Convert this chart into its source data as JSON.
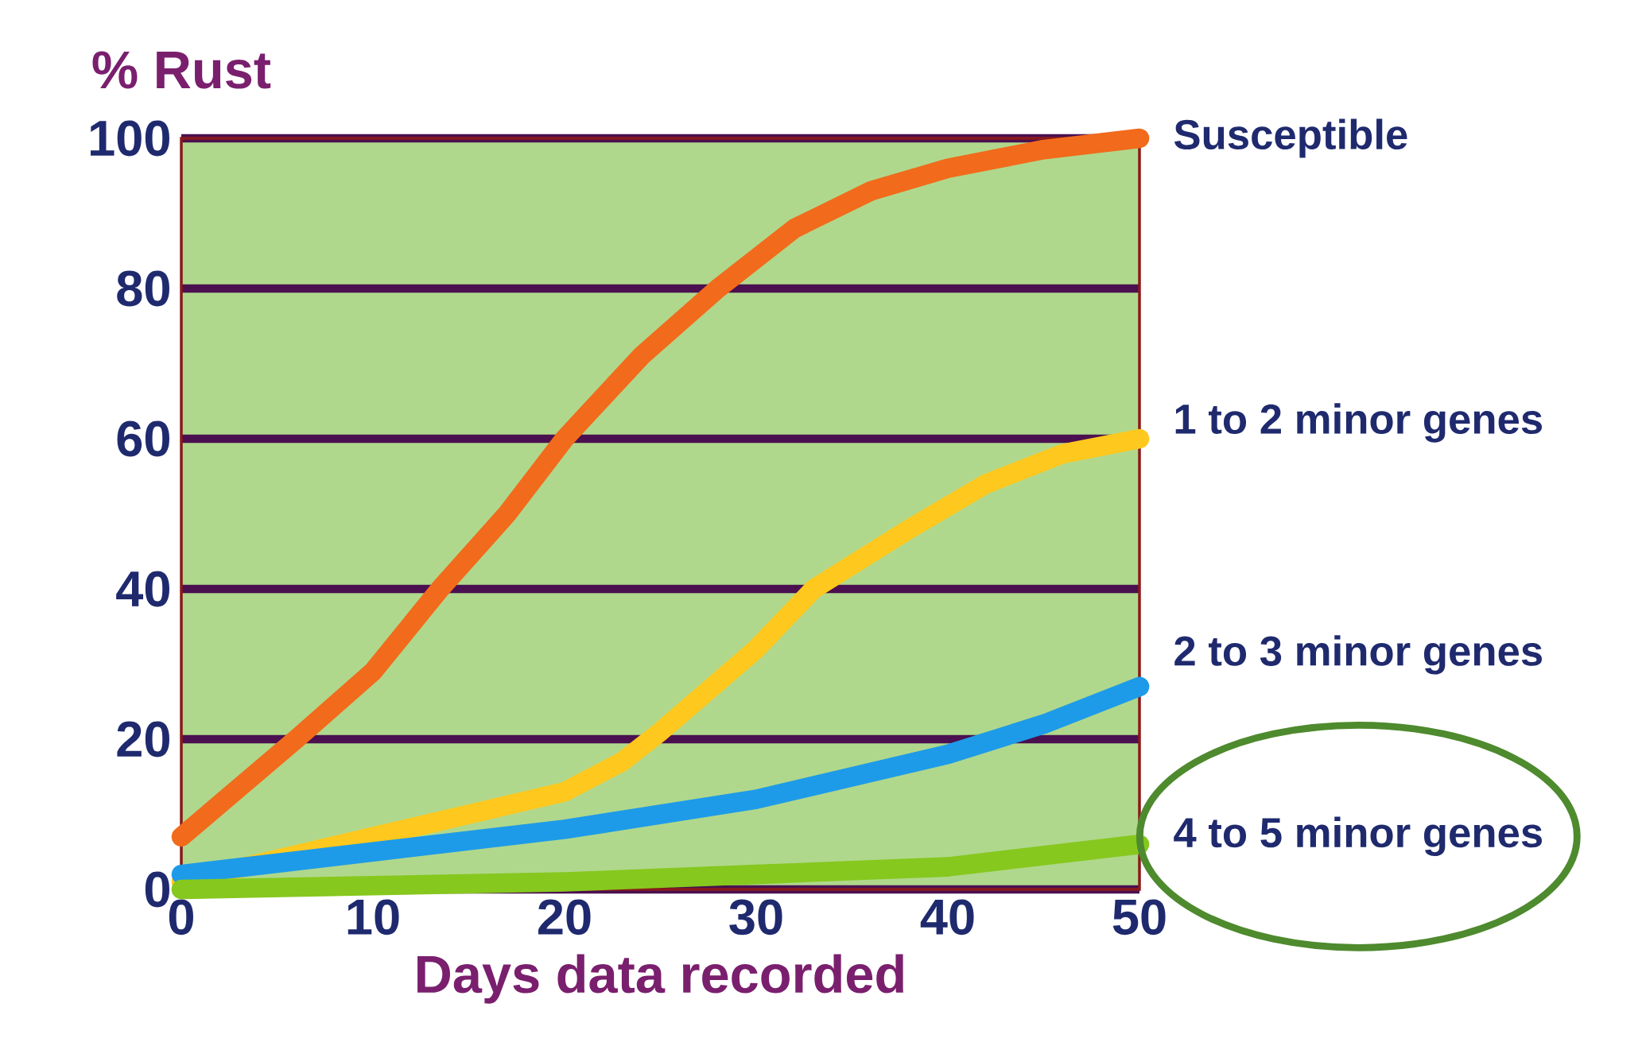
{
  "chart_data": {
    "type": "line",
    "ylabel": "% Rust",
    "xlabel": "Days data recorded",
    "xlim": [
      0,
      50
    ],
    "xticks": [
      0,
      10,
      20,
      30,
      40,
      50
    ],
    "ylim": [
      0,
      100
    ],
    "yticks": [
      0,
      20,
      40,
      60,
      80,
      100
    ],
    "grid": "y",
    "legend": false,
    "marker": "none",
    "line_style": "solid",
    "series": [
      {
        "name": "Susceptible",
        "color": "#f26a1b",
        "x": [
          0,
          6,
          10,
          13.5,
          17,
          20,
          24,
          28,
          32,
          36,
          40,
          45,
          50
        ],
        "values": [
          7,
          20,
          29,
          40,
          50,
          60,
          71,
          80,
          88,
          93,
          96,
          98.5,
          100
        ]
      },
      {
        "name": "1 to 2 minor genes",
        "color": "#ffc81e",
        "x": [
          0,
          10,
          20,
          23,
          25,
          30,
          33,
          38,
          42,
          46,
          50
        ],
        "values": [
          1,
          7,
          13,
          17,
          21,
          32,
          40,
          48,
          54,
          58,
          60
        ]
      },
      {
        "name": "2 to 3 minor genes",
        "color": "#1e9be8",
        "x": [
          0,
          10,
          20,
          30,
          40,
          45,
          50
        ],
        "values": [
          2,
          5,
          8,
          12,
          18,
          22,
          27
        ]
      },
      {
        "name": "4 to 5 minor genes",
        "color": "#86c81e",
        "x": [
          0,
          10,
          20,
          30,
          40,
          50
        ],
        "values": [
          0,
          0.5,
          1,
          2,
          3,
          6
        ]
      }
    ]
  }
}
